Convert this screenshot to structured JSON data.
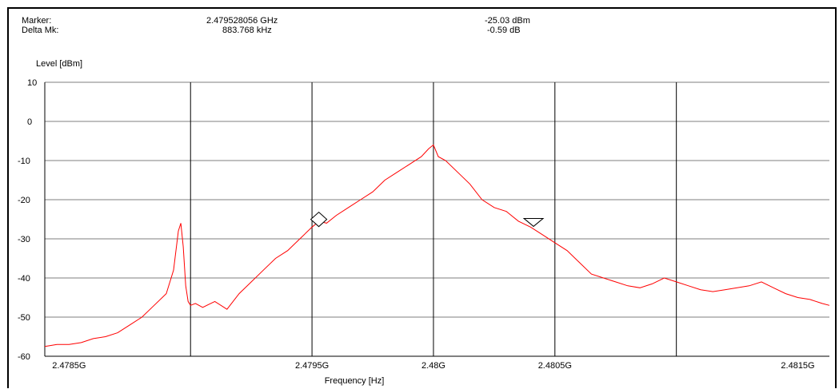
{
  "marker": {
    "label": "Marker:",
    "frequency": "2.479528056 GHz",
    "level": "-25.03 dBm"
  },
  "delta_marker": {
    "label": "Delta Mk:",
    "frequency": "883.768 kHz",
    "level": "-0.59 dB"
  },
  "colors": {
    "trace": "#ff0000",
    "grid": "#000000",
    "background": "#ffffff"
  },
  "chart_data": {
    "type": "line",
    "title": "",
    "ylabel": "Level [dBm]",
    "xlabel": "Frequency [Hz]",
    "xlim": [
      2478.4,
      2481.63
    ],
    "ylim": [
      -60,
      10
    ],
    "yticks": [
      10,
      0,
      -10,
      -20,
      -30,
      -40,
      -50,
      -60
    ],
    "ytick_labels": [
      "10",
      "0",
      "-10",
      "-20",
      "-30",
      "-40",
      "-50",
      "-60"
    ],
    "xticks": [
      2478.5,
      2479.5,
      2480.0,
      2480.5,
      2481.5
    ],
    "xtick_labels": [
      "2.4785G",
      "2.4795G",
      "2.48G",
      "2.4805G",
      "2.4815G"
    ],
    "vgrid_x": [
      2479.0,
      2479.5,
      2480.0,
      2480.5,
      2481.0
    ],
    "grid": true,
    "x_units": "MHz",
    "markers": [
      {
        "name": "marker",
        "shape": "diamond",
        "x": 2479.528,
        "y": -25.03
      },
      {
        "name": "delta-marker",
        "shape": "triangle-down",
        "x": 2480.412,
        "y": -25.6
      }
    ],
    "series": [
      {
        "name": "",
        "x": [
          2478.4,
          2478.45,
          2478.5,
          2478.55,
          2478.6,
          2478.65,
          2478.7,
          2478.75,
          2478.8,
          2478.85,
          2478.9,
          2478.93,
          2478.95,
          2478.96,
          2478.97,
          2478.98,
          2478.99,
          2479.0,
          2479.02,
          2479.05,
          2479.1,
          2479.15,
          2479.2,
          2479.25,
          2479.3,
          2479.35,
          2479.4,
          2479.45,
          2479.5,
          2479.53,
          2479.56,
          2479.6,
          2479.65,
          2479.7,
          2479.75,
          2479.8,
          2479.85,
          2479.9,
          2479.95,
          2479.98,
          2480.0,
          2480.02,
          2480.05,
          2480.1,
          2480.15,
          2480.2,
          2480.25,
          2480.3,
          2480.35,
          2480.4,
          2480.45,
          2480.5,
          2480.55,
          2480.6,
          2480.65,
          2480.7,
          2480.75,
          2480.8,
          2480.85,
          2480.9,
          2480.95,
          2481.0,
          2481.05,
          2481.1,
          2481.15,
          2481.2,
          2481.25,
          2481.3,
          2481.35,
          2481.4,
          2481.45,
          2481.5,
          2481.55,
          2481.6,
          2481.63
        ],
        "y": [
          -57.5,
          -57.0,
          -57.0,
          -56.5,
          -55.5,
          -55.0,
          -54.0,
          -52.0,
          -50.0,
          -47.0,
          -44.0,
          -38.0,
          -28.0,
          -26.0,
          -32.0,
          -42.0,
          -46.0,
          -47.0,
          -46.5,
          -47.5,
          -46.0,
          -48.0,
          -44.0,
          -41.0,
          -38.0,
          -35.0,
          -33.0,
          -30.0,
          -27.0,
          -25.5,
          -26.0,
          -24.0,
          -22.0,
          -20.0,
          -18.0,
          -15.0,
          -13.0,
          -11.0,
          -9.0,
          -7.0,
          -6.0,
          -9.0,
          -10.0,
          -13.0,
          -16.0,
          -20.0,
          -22.0,
          -23.0,
          -25.5,
          -27.0,
          -29.0,
          -31.0,
          -33.0,
          -36.0,
          -39.0,
          -40.0,
          -41.0,
          -42.0,
          -42.5,
          -41.5,
          -40.0,
          -41.0,
          -42.0,
          -43.0,
          -43.5,
          -43.0,
          -42.5,
          -42.0,
          -41.0,
          -42.5,
          -44.0,
          -45.0,
          -45.5,
          -46.5,
          -47.0
        ]
      }
    ]
  }
}
